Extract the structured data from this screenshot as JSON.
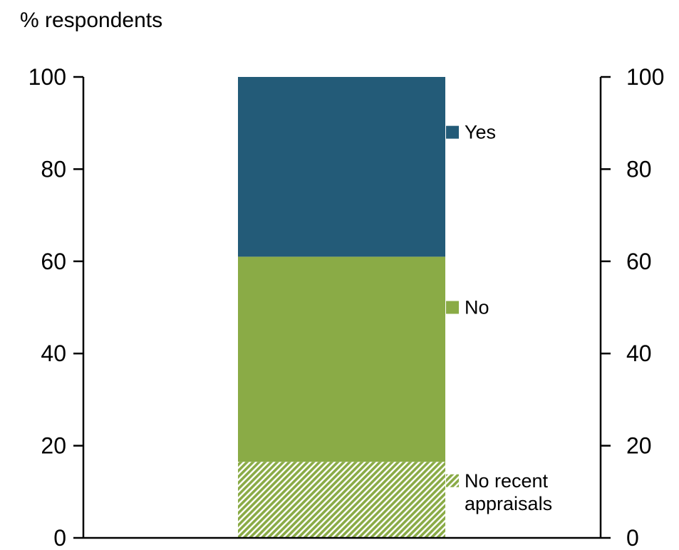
{
  "chart_data": {
    "type": "bar",
    "stacked": true,
    "ylabel": "% respondents",
    "ylim": [
      0,
      100
    ],
    "yticks": [
      "0",
      "20",
      "40",
      "60",
      "80",
      "100"
    ],
    "secondary_y_axis": true,
    "grid": false,
    "legend_placement": "right of bar, inline",
    "series": [
      {
        "name": "No recent appraisals",
        "value": 16.5,
        "color": "#8aab46",
        "pattern": "hatched"
      },
      {
        "name": "No",
        "value": 44.5,
        "color": "#8aab46",
        "pattern": "solid"
      },
      {
        "name": "Yes",
        "value": 39,
        "color": "#235b78",
        "pattern": "solid"
      }
    ]
  }
}
